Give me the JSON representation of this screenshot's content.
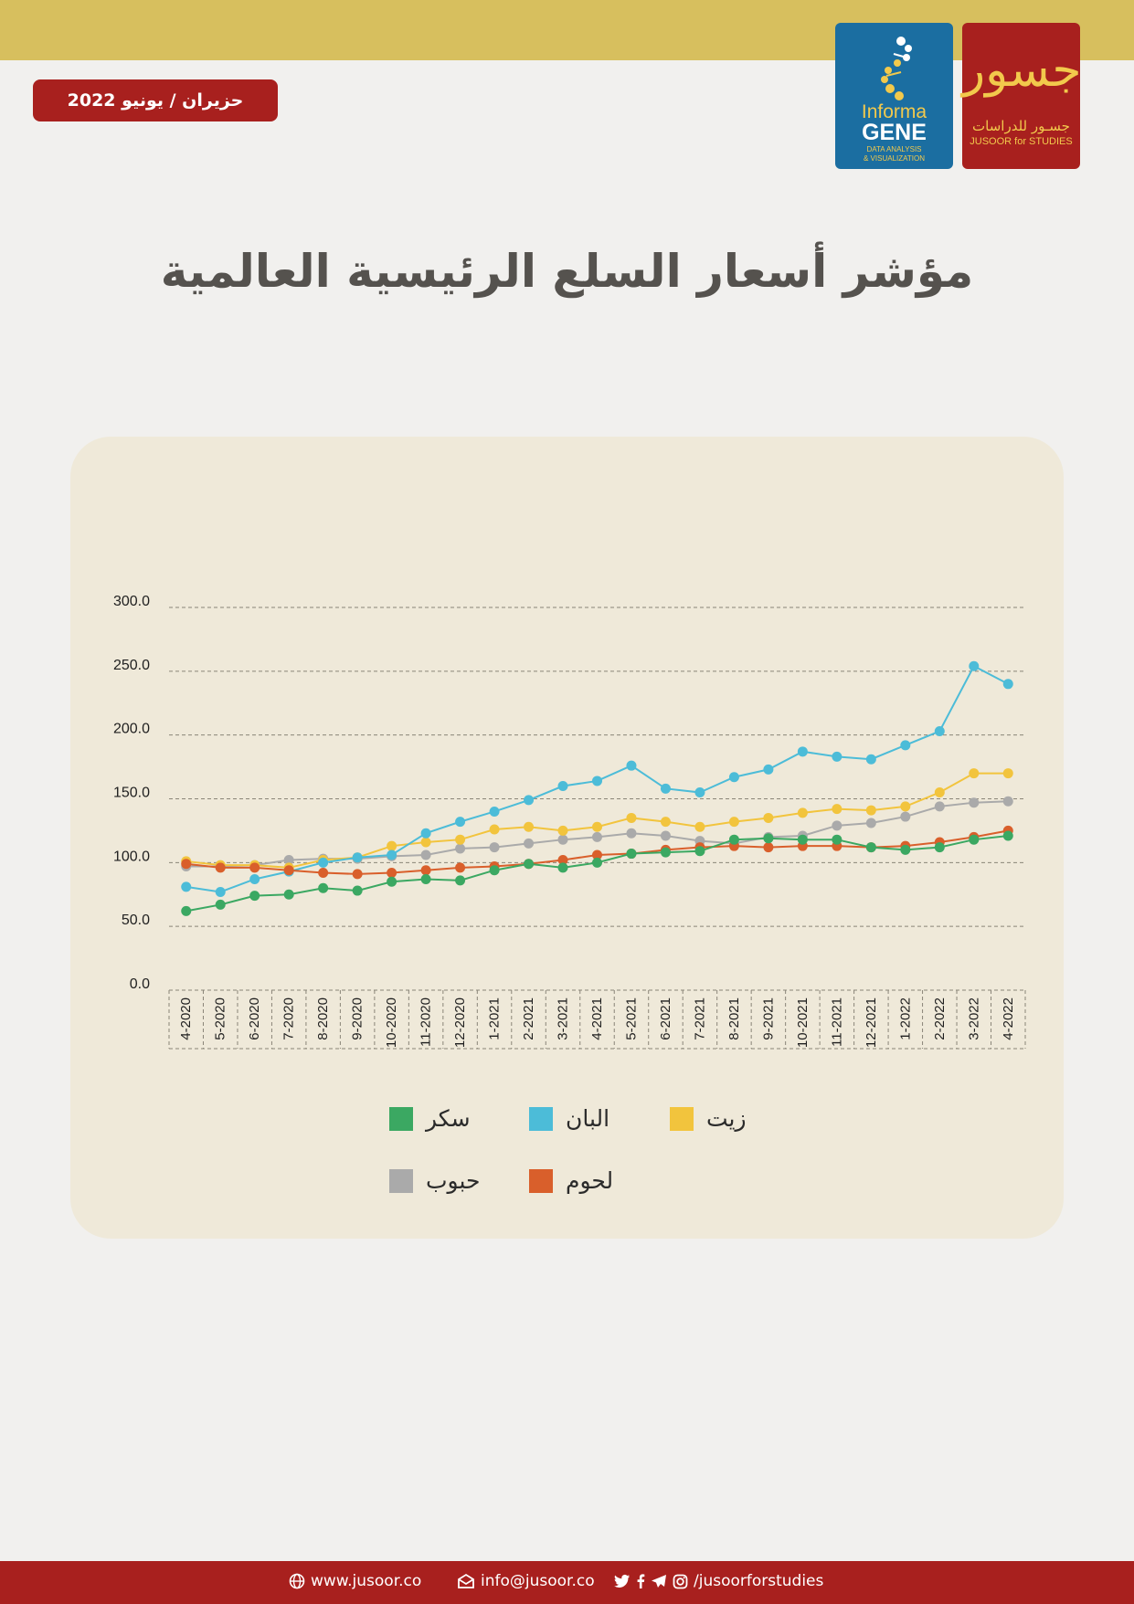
{
  "header": {
    "date_badge": "حزيران / يونيو  2022",
    "informa_logo": {
      "line1": "Informa",
      "line2": "GENE",
      "line3": "DATA ANALYSIS",
      "line4": "& VISUALIZATION"
    },
    "jusoor_logo": {
      "arabic": "جسـور للدراسات",
      "english": "JUSOOR for STUDIES"
    }
  },
  "title": "مؤشر أسعار السلع الرئيسية العالمية",
  "chart_data": {
    "type": "line",
    "title": "",
    "xlabel": "",
    "ylabel": "",
    "ylim": [
      0,
      300
    ],
    "yticks": [
      "0.0",
      "50.0",
      "100.0",
      "150.0",
      "200.0",
      "250.0",
      "300.0"
    ],
    "grid": true,
    "legend_position": "bottom",
    "x": [
      "4-2020",
      "5-2020",
      "6-2020",
      "7-2020",
      "8-2020",
      "9-2020",
      "10-2020",
      "11-2020",
      "12-2020",
      "1-2021",
      "2-2021",
      "3-2021",
      "4-2021",
      "5-2021",
      "6-2021",
      "7-2021",
      "8-2021",
      "9-2021",
      "10-2021",
      "11-2021",
      "12-2021",
      "1-2022",
      "2-2022",
      "3-2022",
      "4-2022"
    ],
    "series": [
      {
        "name": "زيت",
        "color": "#f2c43d",
        "values": [
          101,
          98,
          98,
          96,
          102,
          104,
          113,
          116,
          118,
          126,
          128,
          125,
          128,
          135,
          132,
          128,
          132,
          135,
          139,
          142,
          141,
          144,
          155,
          170,
          170
        ]
      },
      {
        "name": "البان",
        "color": "#4cbcd8",
        "values": [
          81,
          77,
          87,
          93,
          100,
          104,
          106,
          123,
          132,
          140,
          149,
          160,
          164,
          176,
          158,
          155,
          167,
          173,
          187,
          183,
          181,
          192,
          203,
          254,
          240
        ]
      },
      {
        "name": "سكر",
        "color": "#3ba862",
        "values": [
          62,
          67,
          74,
          75,
          80,
          78,
          85,
          87,
          86,
          94,
          99,
          96,
          100,
          107,
          108,
          109,
          118,
          119,
          118,
          118,
          112,
          110,
          112,
          118,
          121
        ]
      },
      {
        "name": "لحوم",
        "color": "#d95f2b",
        "values": [
          99,
          96,
          96,
          94,
          92,
          91,
          92,
          94,
          96,
          97,
          99,
          102,
          106,
          107,
          110,
          112,
          113,
          112,
          113,
          113,
          112,
          113,
          116,
          120,
          125
        ]
      },
      {
        "name": "حبوب",
        "color": "#aaaaaa",
        "values": [
          97,
          97,
          98,
          102,
          103,
          103,
          105,
          106,
          111,
          112,
          115,
          118,
          120,
          123,
          121,
          117,
          115,
          120,
          121,
          129,
          131,
          136,
          144,
          147,
          148
        ]
      }
    ]
  },
  "legend": [
    {
      "label": "زيت",
      "color": "#f2c43d"
    },
    {
      "label": "البان",
      "color": "#4cbcd8"
    },
    {
      "label": "سكر",
      "color": "#3ba862"
    },
    {
      "label": "لحوم",
      "color": "#d95f2b"
    },
    {
      "label": "حبوب",
      "color": "#aaaaaa"
    }
  ],
  "footer": {
    "website": "www.jusoor.co",
    "email": "info@jusoor.co",
    "social": "/jusoorforstudies",
    "icons": [
      "globe-icon",
      "mail-icon",
      "twitter-icon",
      "facebook-icon",
      "telegram-icon",
      "instagram-icon"
    ]
  }
}
